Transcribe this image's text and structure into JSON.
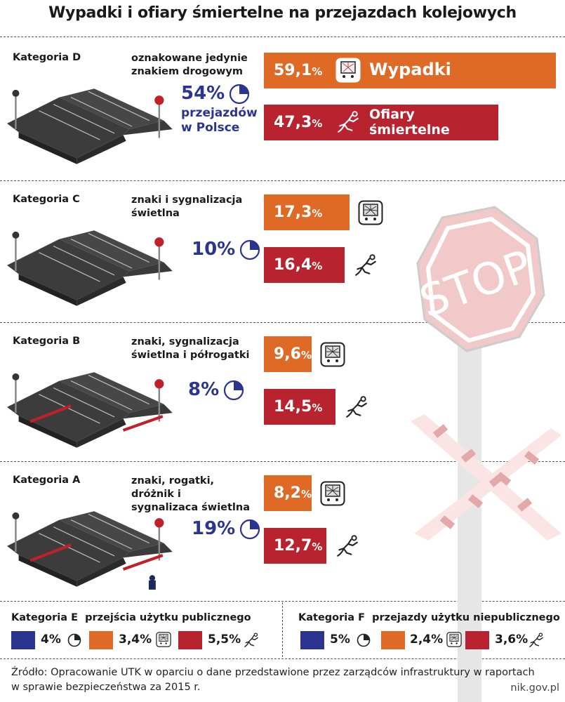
{
  "title": "Wypadki i ofiary śmiertelne na przejazdach kolejowych",
  "chart_data": {
    "type": "bar",
    "title": "Wypadki i ofiary śmiertelne na przejazdach kolejowych",
    "series_names": [
      "Wypadki",
      "Ofiary śmiertelne"
    ],
    "share_label": "przejazdów w Polsce",
    "categories": [
      {
        "name": "Kategoria D",
        "description": "oznakowane jedynie znakiem drogowym",
        "share": 54,
        "share_text": "54%",
        "accidents": 59.1,
        "accidents_text": "59,1",
        "fatalities": 47.3,
        "fatalities_text": "47,3"
      },
      {
        "name": "Kategoria C",
        "description": "znaki i sygnalizacja świetlna",
        "share": 10,
        "share_text": "10%",
        "accidents": 17.3,
        "accidents_text": "17,3",
        "fatalities": 16.4,
        "fatalities_text": "16,4"
      },
      {
        "name": "Kategoria B",
        "description": "znaki, sygnalizacja świetlna i półrogatki",
        "share": 8,
        "share_text": "8%",
        "accidents": 9.6,
        "accidents_text": "9,6",
        "fatalities": 14.5,
        "fatalities_text": "14,5"
      },
      {
        "name": "Kategoria A",
        "description": "znaki, rogatki, dróżnik i sygnalizaca świetlna",
        "share": 19,
        "share_text": "19%",
        "accidents": 8.2,
        "accidents_text": "8,2",
        "fatalities": 12.7,
        "fatalities_text": "12,7"
      }
    ],
    "extra": [
      {
        "name": "Kategoria E",
        "description": "przejścia użytku publicznego",
        "share": 4,
        "share_text": "4%",
        "accidents": 3.4,
        "accidents_text": "3,4%",
        "fatalities": 5.5,
        "fatalities_text": "5,5%"
      },
      {
        "name": "Kategoria F",
        "description": "przejazdy użytku niepublicznego",
        "share": 5,
        "share_text": "5%",
        "accidents": 2.4,
        "accidents_text": "2,4%",
        "fatalities": 3.6,
        "fatalities_text": "3,6%"
      }
    ]
  },
  "labels": {
    "accidents": "Wypadki",
    "fatalities_line1": "Ofiary",
    "fatalities_line2": "śmiertelne",
    "share_line1": "przejazdów",
    "share_line2": "w Polsce",
    "percent": "%"
  },
  "colors": {
    "orange": "#de6a26",
    "red": "#b8232f",
    "blue": "#2b3590"
  },
  "icons": [
    "shattered-window-icon",
    "falling-person-icon",
    "pie-chart-icon",
    "stop-sign-icon",
    "railway-crossing-icon"
  ],
  "source_line1": "Źródło: Opracowanie UTK w oparciu o dane przedstawione przez zarządców infrastruktury w raportach",
  "source_line2": "w sprawie bezpieczeństwa za 2015 r.",
  "site": "nik.gov.pl"
}
